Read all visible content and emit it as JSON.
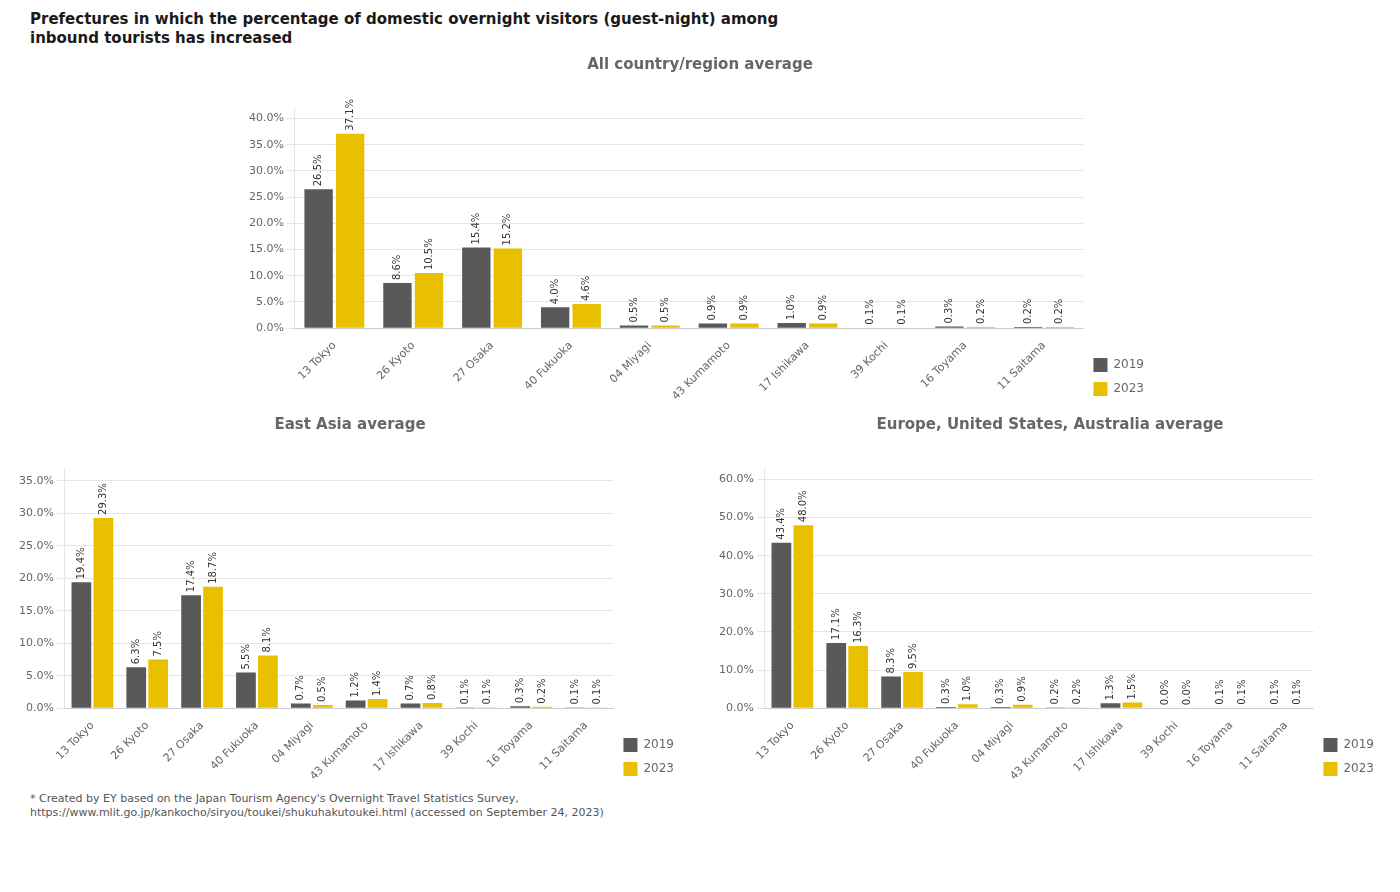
{
  "title": "Prefectures in which the percentage of domestic overnight visitors (guest-night) among\ninbound tourists has increased",
  "annotations": [
    "* Created by EY based on the Japan Tourism Agency's Overnight Travel Statistics Survey,\nhttps://www.mlit.go.jp/kankocho/siryou/toukei/shukuhakutoukei.html (accessed on September 24, 2023)"
  ],
  "chart_data": [
    {
      "type": "bar",
      "title": "All country/region average",
      "categories": [
        "13 Tokyo",
        "26 Kyoto",
        "27 Osaka",
        "40 Fukuoka",
        "04 Miyagi",
        "43 Kumamoto",
        "17 Ishikawa",
        "39 Kochi",
        "16 Toyama",
        "11 Saitama"
      ],
      "series": [
        {
          "name": "2019",
          "color": "#595959",
          "values": [
            26.5,
            8.6,
            15.4,
            4.0,
            0.5,
            0.9,
            1.0,
            0.1,
            0.3,
            0.2
          ],
          "value_labels": [
            "26.5%",
            "8.6%",
            "15.4%",
            "4.0%",
            "0.5%",
            "0.9%",
            "1.0%",
            "0.1%",
            "0.3%",
            "0.2%"
          ]
        },
        {
          "name": "2023",
          "color": "#e8c000",
          "values": [
            37.1,
            10.5,
            15.2,
            4.6,
            0.5,
            0.9,
            0.9,
            0.1,
            0.2,
            0.2
          ],
          "value_labels": [
            "37.1%",
            "10.5%",
            "15.2%",
            "4.6%",
            "0.5%",
            "0.9%",
            "0.9%",
            "0.1%",
            "0.2%",
            "0.2%"
          ]
        }
      ],
      "ylim": [
        0,
        42
      ],
      "yticks": [
        {
          "value": 0,
          "label": "0.0%"
        },
        {
          "value": 5,
          "label": "5.0%"
        },
        {
          "value": 10,
          "label": "10.0%"
        },
        {
          "value": 15,
          "label": "15.0%"
        },
        {
          "value": 20,
          "label": "20.0%"
        },
        {
          "value": 25,
          "label": "25.0%"
        },
        {
          "value": 30,
          "label": "30.0%"
        },
        {
          "value": 35,
          "label": "35.0%"
        },
        {
          "value": 40,
          "label": "40.0%"
        }
      ],
      "grid": true,
      "legend": "lower right",
      "data_labels": true
    },
    {
      "type": "bar",
      "title": "East Asia average",
      "categories": [
        "13 Tokyo",
        "26 Kyoto",
        "27 Osaka",
        "40 Fukuoka",
        "04 Miyagi",
        "43 Kumamoto",
        "17 Ishikawa",
        "39 Kochi",
        "16 Toyama",
        "11 Saitama"
      ],
      "series": [
        {
          "name": "2019",
          "color": "#595959",
          "values": [
            19.4,
            6.3,
            17.4,
            5.5,
            0.7,
            1.2,
            0.7,
            0.1,
            0.3,
            0.1
          ],
          "value_labels": [
            "19.4%",
            "6.3%",
            "17.4%",
            "5.5%",
            "0.7%",
            "1.2%",
            "0.7%",
            "0.1%",
            "0.3%",
            "0.1%"
          ]
        },
        {
          "name": "2023",
          "color": "#e8c000",
          "values": [
            29.3,
            7.5,
            18.7,
            8.1,
            0.5,
            1.4,
            0.8,
            0.1,
            0.2,
            0.1
          ],
          "value_labels": [
            "29.3%",
            "7.5%",
            "18.7%",
            "8.1%",
            "0.5%",
            "1.4%",
            "0.8%",
            "0.1%",
            "0.2%",
            "0.1%"
          ]
        }
      ],
      "ylim": [
        0,
        37
      ],
      "yticks": [
        {
          "value": 0,
          "label": "0.0%"
        },
        {
          "value": 5,
          "label": "5.0%"
        },
        {
          "value": 10,
          "label": "10.0%"
        },
        {
          "value": 15,
          "label": "15.0%"
        },
        {
          "value": 20,
          "label": "20.0%"
        },
        {
          "value": 25,
          "label": "25.0%"
        },
        {
          "value": 30,
          "label": "30.0%"
        },
        {
          "value": 35,
          "label": "35.0%"
        }
      ],
      "grid": true,
      "legend": "lower right",
      "data_labels": true
    },
    {
      "type": "bar",
      "title": "Europe, United States, Australia average",
      "categories": [
        "13 Tokyo",
        "26 Kyoto",
        "27 Osaka",
        "40 Fukuoka",
        "04 Miyagi",
        "43 Kumamoto",
        "17 Ishikawa",
        "39 Kochi",
        "16 Toyama",
        "11 Saitama"
      ],
      "series": [
        {
          "name": "2019",
          "color": "#595959",
          "values": [
            43.4,
            17.1,
            8.3,
            0.3,
            0.3,
            0.2,
            1.3,
            0.0,
            0.1,
            0.1
          ],
          "value_labels": [
            "43.4%",
            "17.1%",
            "8.3%",
            "0.3%",
            "0.3%",
            "0.2%",
            "1.3%",
            "0.0%",
            "0.1%",
            "0.1%"
          ]
        },
        {
          "name": "2023",
          "color": "#e8c000",
          "values": [
            48.0,
            16.3,
            9.5,
            1.0,
            0.9,
            0.2,
            1.5,
            0.0,
            0.1,
            0.1
          ],
          "value_labels": [
            "48.0%",
            "16.3%",
            "9.5%",
            "1.0%",
            "0.9%",
            "0.2%",
            "1.5%",
            "0.0%",
            "0.1%",
            "0.1%"
          ]
        }
      ],
      "ylim": [
        0,
        63
      ],
      "yticks": [
        {
          "value": 0,
          "label": "0.0%"
        },
        {
          "value": 10,
          "label": "10.0%"
        },
        {
          "value": 20,
          "label": "20.0%"
        },
        {
          "value": 30,
          "label": "30.0%"
        },
        {
          "value": 40,
          "label": "40.0%"
        },
        {
          "value": 50,
          "label": "50.0%"
        },
        {
          "value": 60,
          "label": "60.0%"
        }
      ],
      "grid": true,
      "legend": "lower right",
      "data_labels": true
    }
  ]
}
